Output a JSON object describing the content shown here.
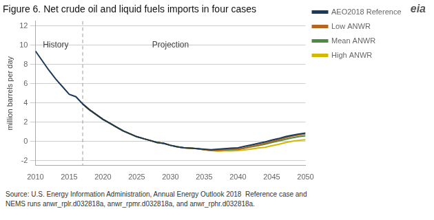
{
  "chart_data": {
    "type": "line",
    "title": "Figure 6. Net crude oil and liquid fuels imports in four cases",
    "ylabel": "million barrels per day",
    "source": [
      "Source: U.S. Energy Information Administration, Annual Energy Outlook 2018  Reference case and",
      "NEMS runs anwr_rplr.d032818a, anwr_rpmr.d032818a, and anwr_rphr.d032818a."
    ],
    "logo": "eia",
    "x": [
      2010,
      2011,
      2012,
      2013,
      2014,
      2015,
      2016,
      2017,
      2018,
      2019,
      2020,
      2021,
      2022,
      2023,
      2024,
      2025,
      2026,
      2027,
      2028,
      2029,
      2030,
      2031,
      2032,
      2033,
      2034,
      2035,
      2036,
      2037,
      2038,
      2039,
      2040,
      2041,
      2042,
      2043,
      2044,
      2045,
      2046,
      2047,
      2048,
      2049,
      2050
    ],
    "series": [
      {
        "name": "AEO2018 Reference",
        "color": "#1a3a5c",
        "values": [
          9.4,
          8.4,
          7.4,
          6.5,
          5.7,
          4.9,
          4.65,
          3.9,
          3.3,
          2.8,
          2.3,
          1.9,
          1.5,
          1.1,
          0.8,
          0.5,
          0.3,
          0.1,
          -0.1,
          -0.2,
          -0.4,
          -0.55,
          -0.65,
          -0.7,
          -0.75,
          -0.8,
          -0.85,
          -0.8,
          -0.75,
          -0.7,
          -0.65,
          -0.5,
          -0.35,
          -0.2,
          -0.05,
          0.15,
          0.3,
          0.5,
          0.65,
          0.78,
          0.88
        ]
      },
      {
        "name": "Low ANWR",
        "color": "#b5651d",
        "values": [
          null,
          null,
          null,
          null,
          null,
          null,
          null,
          3.9,
          3.3,
          2.8,
          2.3,
          1.9,
          1.5,
          1.1,
          0.8,
          0.5,
          0.3,
          0.1,
          -0.1,
          -0.2,
          -0.4,
          -0.55,
          -0.65,
          -0.7,
          -0.75,
          -0.85,
          -0.9,
          -0.9,
          -0.85,
          -0.8,
          -0.8,
          -0.65,
          -0.5,
          -0.35,
          -0.2,
          0.0,
          0.18,
          0.38,
          0.55,
          0.68,
          0.78
        ]
      },
      {
        "name": "Mean ANWR",
        "color": "#4d8c40",
        "values": [
          null,
          null,
          null,
          null,
          null,
          null,
          null,
          3.9,
          3.3,
          2.8,
          2.3,
          1.9,
          1.5,
          1.1,
          0.8,
          0.5,
          0.3,
          0.1,
          -0.1,
          -0.2,
          -0.4,
          -0.55,
          -0.65,
          -0.7,
          -0.75,
          -0.85,
          -0.92,
          -0.92,
          -0.88,
          -0.85,
          -0.82,
          -0.7,
          -0.55,
          -0.42,
          -0.28,
          -0.1,
          0.05,
          0.22,
          0.38,
          0.5,
          0.6
        ]
      },
      {
        "name": "High ANWR",
        "color": "#d4b800",
        "values": [
          null,
          null,
          null,
          null,
          null,
          null,
          null,
          3.9,
          3.3,
          2.8,
          2.3,
          1.9,
          1.5,
          1.1,
          0.8,
          0.5,
          0.3,
          0.1,
          -0.1,
          -0.2,
          -0.4,
          -0.55,
          -0.65,
          -0.7,
          -0.75,
          -0.85,
          -0.95,
          -1.0,
          -0.98,
          -0.98,
          -0.95,
          -0.88,
          -0.78,
          -0.68,
          -0.6,
          -0.45,
          -0.3,
          -0.12,
          0.02,
          0.12,
          0.18
        ]
      }
    ],
    "annotations": [
      {
        "type": "vline",
        "x": 2017
      },
      {
        "text": "History",
        "x": 2013,
        "y": 9.6
      },
      {
        "text": "Projection",
        "x": 2030,
        "y": 9.6
      }
    ],
    "xlim": [
      2010,
      2050
    ],
    "ylim": [
      -2.5,
      12.5
    ],
    "xticks": [
      2010,
      2015,
      2020,
      2025,
      2030,
      2035,
      2040,
      2045,
      2050
    ],
    "yticks": [
      -2,
      0,
      2,
      4,
      6,
      8,
      10,
      12
    ],
    "grid": "y",
    "legend": "right"
  }
}
